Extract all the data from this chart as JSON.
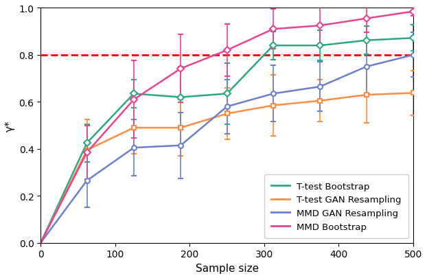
{
  "title": "",
  "xlabel": "Sample size",
  "ylabel": "γ*",
  "xlim": [
    0,
    500
  ],
  "ylim": [
    0.0,
    1.0
  ],
  "dashed_line_y": 0.8,
  "x_points": [
    0,
    62,
    125,
    188,
    250,
    312,
    375,
    437,
    500
  ],
  "series": [
    {
      "label": "T-test Bootstrap",
      "color": "#2ca87f",
      "marker": "D",
      "marker_size": 5,
      "y": [
        0.0,
        0.425,
        0.635,
        0.62,
        0.635,
        0.84,
        0.84,
        0.862,
        0.872
      ],
      "yerr": [
        0.0,
        0.08,
        0.06,
        0.13,
        0.13,
        0.06,
        0.065,
        0.06,
        0.055
      ]
    },
    {
      "label": "T-test GAN Resampling",
      "color": "#ff8c42",
      "marker": "s",
      "marker_size": 5,
      "y": [
        0.0,
        0.395,
        0.49,
        0.49,
        0.55,
        0.585,
        0.605,
        0.63,
        0.638
      ],
      "yerr": [
        0.0,
        0.13,
        0.11,
        0.12,
        0.11,
        0.13,
        0.09,
        0.12,
        0.095
      ]
    },
    {
      "label": "MMD GAN Resampling",
      "color": "#6b7fcc",
      "marker": "o",
      "marker_size": 5,
      "y": [
        0.0,
        0.265,
        0.405,
        0.415,
        0.58,
        0.635,
        0.665,
        0.75,
        0.8
      ],
      "yerr": [
        0.0,
        0.115,
        0.12,
        0.14,
        0.115,
        0.12,
        0.105,
        0.11,
        0.095
      ]
    },
    {
      "label": "MMD Bootstrap",
      "color": "#e84393",
      "marker": "D",
      "marker_size": 5,
      "y": [
        0.0,
        0.385,
        0.61,
        0.742,
        0.82,
        0.91,
        0.925,
        0.955,
        0.985
      ],
      "yerr": [
        0.0,
        0.115,
        0.165,
        0.145,
        0.11,
        0.085,
        0.08,
        0.06,
        0.02
      ]
    }
  ],
  "xticks": [
    0,
    100,
    200,
    300,
    400,
    500
  ],
  "yticks": [
    0.0,
    0.2,
    0.4,
    0.6,
    0.8,
    1.0
  ],
  "legend_loc": "lower right"
}
